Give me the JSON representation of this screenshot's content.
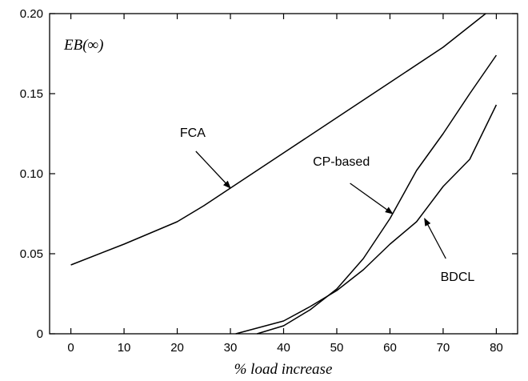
{
  "chart_data": {
    "type": "line",
    "title": "",
    "panel_label": "EB(∞)",
    "xlabel": "% load increase",
    "ylabel": "",
    "xlim": [
      -4,
      84
    ],
    "ylim": [
      0,
      0.2
    ],
    "x_ticks": [
      0,
      10,
      20,
      30,
      40,
      50,
      60,
      70,
      80
    ],
    "x_tick_labels": [
      "0",
      "10",
      "20",
      "30",
      "40",
      "50",
      "60",
      "70",
      "80"
    ],
    "y_ticks": [
      0,
      0.05,
      0.1,
      0.15,
      0.2
    ],
    "y_tick_labels": [
      "0",
      "0.05",
      "0.10",
      "0.15",
      "0.20"
    ],
    "grid": false,
    "legend": "none",
    "series": [
      {
        "name": "FCA",
        "x": [
          0,
          10,
          20,
          25,
          30,
          40,
          50,
          60,
          70,
          78
        ],
        "y": [
          0.043,
          0.056,
          0.07,
          0.08,
          0.091,
          0.113,
          0.135,
          0.157,
          0.179,
          0.2
        ]
      },
      {
        "name": "CP-based",
        "x": [
          35,
          40,
          45,
          50,
          55,
          60,
          65,
          70,
          75,
          80
        ],
        "y": [
          0,
          0.005,
          0.015,
          0.028,
          0.047,
          0.072,
          0.102,
          0.125,
          0.15,
          0.174
        ]
      },
      {
        "name": "BDCL",
        "x": [
          31,
          40,
          45,
          50,
          55,
          60,
          65,
          70,
          75,
          80
        ],
        "y": [
          0,
          0.008,
          0.017,
          0.027,
          0.04,
          0.056,
          0.07,
          0.092,
          0.109,
          0.143
        ]
      }
    ],
    "annotations": [
      {
        "series": "FCA",
        "text": "FCA",
        "text_at": [
          20.5,
          0.123
        ],
        "arrow_from": [
          23.5,
          0.114
        ],
        "arrow_to": [
          30,
          0.091
        ]
      },
      {
        "series": "CP-based",
        "text": "CP-based",
        "text_at": [
          45.5,
          0.105
        ],
        "arrow_from": [
          52.5,
          0.094
        ],
        "arrow_to": [
          60.5,
          0.075
        ]
      },
      {
        "series": "BDCL",
        "text": "BDCL",
        "text_at": [
          69.5,
          0.033
        ],
        "arrow_from": [
          70.5,
          0.047
        ],
        "arrow_to": [
          66.5,
          0.072
        ]
      }
    ]
  }
}
